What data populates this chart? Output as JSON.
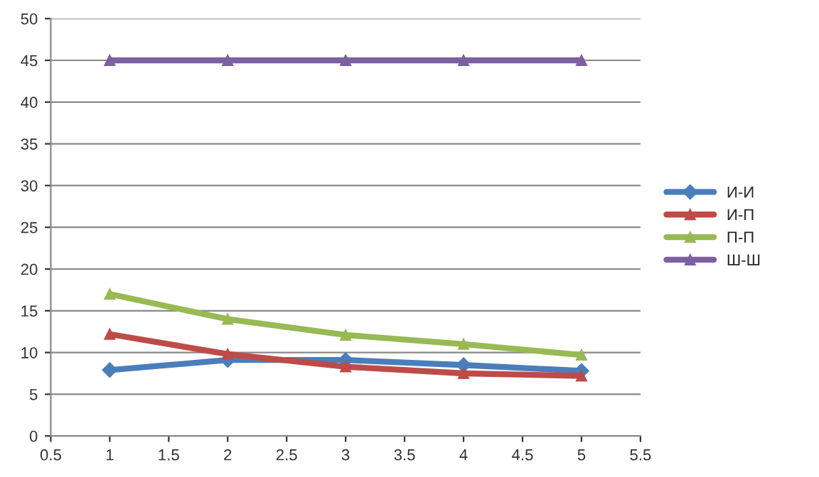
{
  "chart_data": {
    "type": "line",
    "x": [
      1,
      2,
      3,
      4,
      5
    ],
    "series": [
      {
        "name": "И-И",
        "color": "#4a7ebb",
        "marker": "diamond",
        "values": [
          7.9,
          9.1,
          9.1,
          8.5,
          7.8
        ]
      },
      {
        "name": "И-П",
        "color": "#be4b48",
        "marker": "triangle",
        "values": [
          12.2,
          9.8,
          8.3,
          7.5,
          7.2
        ]
      },
      {
        "name": "П-П",
        "color": "#98b954",
        "marker": "triangle",
        "values": [
          17,
          14,
          12.1,
          11,
          9.7
        ]
      },
      {
        "name": "Ш-Ш",
        "color": "#7d60a0",
        "marker": "triangle",
        "values": [
          45,
          45,
          45,
          45,
          45
        ]
      }
    ],
    "xlim": [
      0.5,
      5.5
    ],
    "xticks": [
      0.5,
      1,
      1.5,
      2,
      2.5,
      3,
      3.5,
      4,
      4.5,
      5,
      5.5
    ],
    "ylim": [
      0,
      50
    ],
    "yticks": [
      0,
      5,
      10,
      15,
      20,
      25,
      30,
      35,
      40,
      45,
      50
    ],
    "grid": "y",
    "legend": "right"
  }
}
